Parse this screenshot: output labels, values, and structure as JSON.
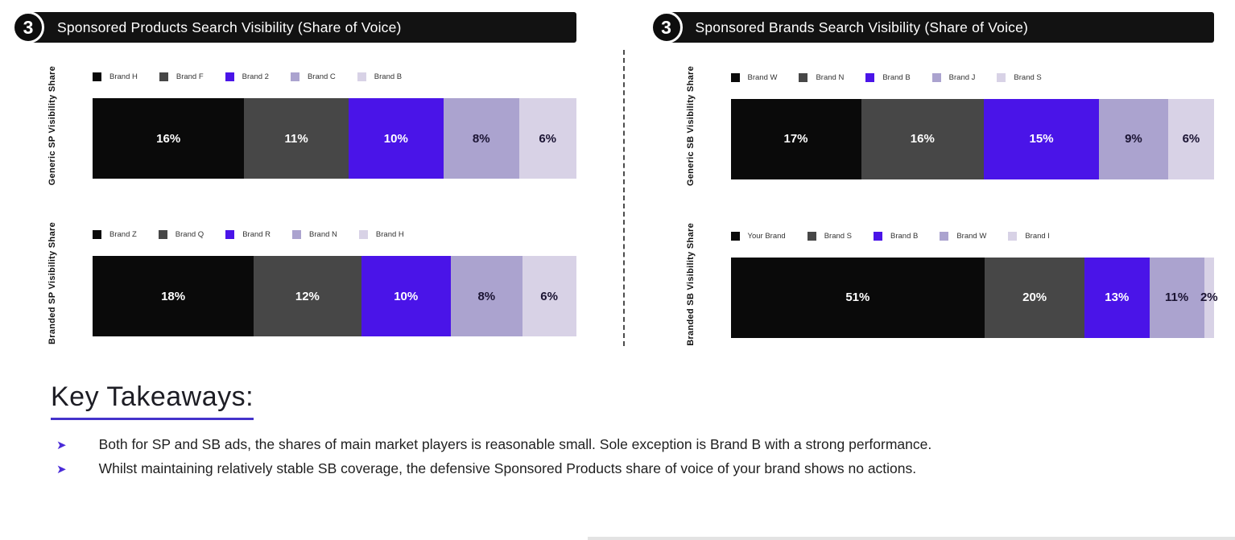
{
  "panels": [
    {
      "badge": "3",
      "title": "Sponsored Products Search Visibility (Share of Voice)"
    },
    {
      "badge": "3",
      "title": "Sponsored Brands Search Visibility (Share of Voice)"
    }
  ],
  "series_colors": [
    "#0a0a0a",
    "#474747",
    "#4a14e8",
    "#aba3cf",
    "#d8d2e6"
  ],
  "label_colors": [
    "#ffffff",
    "#ffffff",
    "#ffffff",
    "#1b1433",
    "#1b1433"
  ],
  "accent_color": "#4a2bd8",
  "arrow_icon": "➤",
  "chart_data": [
    {
      "type": "bar",
      "variant": "horizontal-stacked",
      "title": "Generic SP Visibility Share",
      "panel_title": "Sponsored Products Search Visibility (Share of Voice)",
      "categories": [
        "Brand H",
        "Brand F",
        "Brand 2",
        "Brand C",
        "Brand B"
      ],
      "values": [
        16,
        11,
        10,
        8,
        6
      ],
      "unit": "%",
      "legend_position": "top",
      "grid": false
    },
    {
      "type": "bar",
      "variant": "horizontal-stacked",
      "title": "Branded SP Visibility Share",
      "panel_title": "Sponsored Products Search Visibility (Share of Voice)",
      "categories": [
        "Brand Z",
        "Brand Q",
        "Brand R",
        "Brand N",
        "Brand H"
      ],
      "values": [
        18,
        12,
        10,
        8,
        6
      ],
      "unit": "%",
      "legend_position": "top",
      "grid": false
    },
    {
      "type": "bar",
      "variant": "horizontal-stacked",
      "title": "Generic SB Visibility Share",
      "panel_title": "Sponsored Brands Search Visibility (Share of Voice)",
      "categories": [
        "Brand W",
        "Brand N",
        "Brand B",
        "Brand J",
        "Brand S"
      ],
      "values": [
        17,
        16,
        15,
        9,
        6
      ],
      "unit": "%",
      "legend_position": "top",
      "grid": false
    },
    {
      "type": "bar",
      "variant": "horizontal-stacked",
      "title": "Branded SB Visibility Share",
      "panel_title": "Sponsored Brands Search Visibility (Share of Voice)",
      "categories": [
        "Your Brand",
        "Brand S",
        "Brand B",
        "Brand W",
        "Brand I"
      ],
      "values": [
        51,
        20,
        13,
        11,
        2
      ],
      "unit": "%",
      "legend_position": "top",
      "grid": false
    }
  ],
  "takeaways": {
    "heading": "Key Takeaways:",
    "bullets": [
      "Both for SP and SB ads, the shares of main market players is reasonable small. Sole exception is Brand B with a strong performance.",
      "Whilst maintaining relatively stable SB coverage, the defensive Sponsored Products share of voice of your brand shows no actions."
    ]
  }
}
